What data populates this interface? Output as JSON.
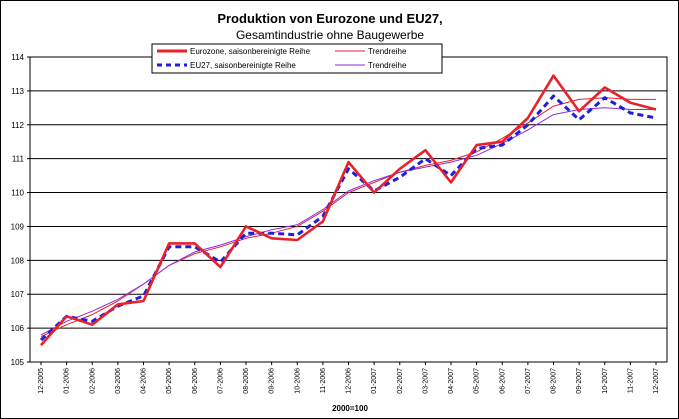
{
  "chart_data": {
    "type": "line",
    "title": "Produktion von Eurozone und EU27,",
    "subtitle": "Gesamtindustrie ohne Baugewerbe",
    "xlabel": "2000=100",
    "ylabel": "",
    "ylim": [
      105,
      114
    ],
    "yticks": [
      105,
      106,
      107,
      108,
      109,
      110,
      111,
      112,
      113,
      114
    ],
    "grid": true,
    "legend_position": "top",
    "categories": [
      "12-2005",
      "01-2006",
      "02-2006",
      "03-2006",
      "04-2006",
      "05-2006",
      "06-2006",
      "07-2006",
      "08-2006",
      "09-2006",
      "10-2006",
      "11-2006",
      "12-2006",
      "01-2007",
      "02-2007",
      "03-2007",
      "04-2007",
      "05-2007",
      "06-2007",
      "07-2007",
      "08-2007",
      "09-2007",
      "10-2007",
      "11-2007",
      "12-2007"
    ],
    "series": [
      {
        "name": "Eurozone, saisonbereinigte Reihe",
        "color": "#e8212b",
        "style": "thick",
        "values": [
          105.5,
          106.35,
          106.1,
          106.7,
          106.8,
          108.5,
          108.5,
          107.8,
          109.0,
          108.65,
          108.6,
          109.15,
          110.9,
          110.0,
          110.7,
          111.25,
          110.3,
          111.4,
          111.5,
          112.2,
          113.45,
          112.4,
          113.1,
          112.65,
          112.45
        ]
      },
      {
        "name": "Trendreihe",
        "color": "#e8212b",
        "style": "thin",
        "values": [
          105.75,
          106.1,
          106.4,
          106.8,
          107.3,
          107.85,
          108.2,
          108.4,
          108.65,
          108.8,
          109.0,
          109.45,
          110.0,
          110.3,
          110.6,
          110.8,
          110.95,
          111.2,
          111.6,
          112.05,
          112.55,
          112.75,
          112.8,
          112.75,
          112.75
        ]
      },
      {
        "name": "EU27, saisonbereinigte Reihe",
        "color": "#1f1fd9",
        "style": "dashed",
        "values": [
          105.65,
          106.35,
          106.2,
          106.65,
          106.95,
          108.4,
          108.4,
          107.95,
          108.8,
          108.8,
          108.75,
          109.3,
          110.7,
          110.05,
          110.45,
          111.0,
          110.5,
          111.3,
          111.4,
          112.0,
          112.85,
          112.15,
          112.8,
          112.35,
          112.2
        ]
      },
      {
        "name": "Trendreihe",
        "color": "#8a2be2",
        "style": "thin",
        "values": [
          105.8,
          106.2,
          106.5,
          106.85,
          107.3,
          107.85,
          108.25,
          108.45,
          108.7,
          108.9,
          109.05,
          109.5,
          110.05,
          110.35,
          110.6,
          110.75,
          110.9,
          111.1,
          111.45,
          111.85,
          112.3,
          112.45,
          112.5,
          112.45,
          112.45
        ]
      }
    ]
  }
}
